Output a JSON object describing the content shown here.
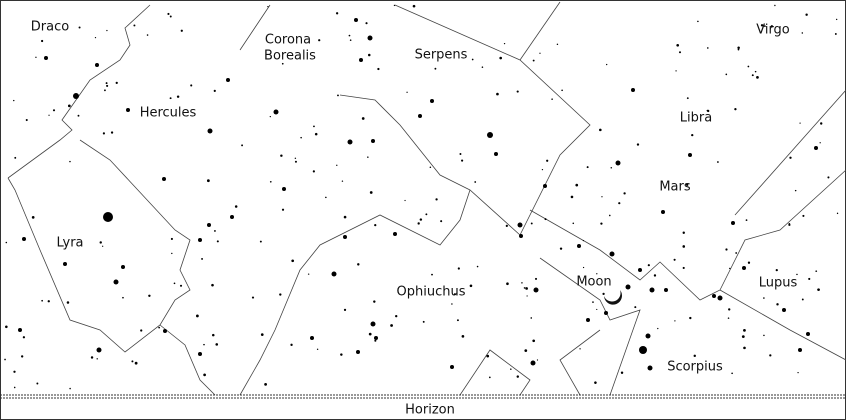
{
  "labels": {
    "constellations": [
      "Draco",
      "Serpens",
      "Virgo",
      "Hercules",
      "Libra",
      "Lyra",
      "Ophiuchus",
      "Lupus",
      "Scorpius"
    ],
    "corona_borealis": [
      "Corona",
      "Borealis"
    ],
    "planet": "Mars",
    "moon": "Moon",
    "horizon": "Horizon"
  }
}
